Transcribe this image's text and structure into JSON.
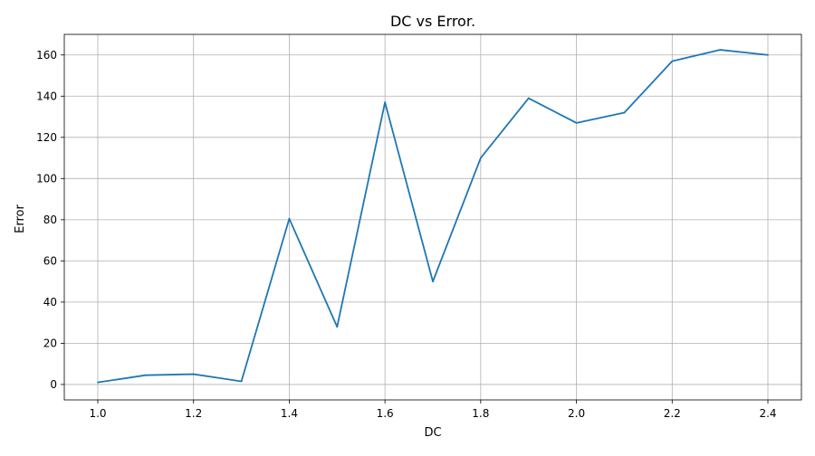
{
  "chart_data": {
    "type": "line",
    "title": "DC vs Error.",
    "xlabel": "DC",
    "ylabel": "Error",
    "x": [
      1.0,
      1.1,
      1.2,
      1.3,
      1.4,
      1.5,
      1.6,
      1.7,
      1.8,
      1.9,
      2.0,
      2.1,
      2.2,
      2.3,
      2.4
    ],
    "series": [
      {
        "values": [
          1,
          4.5,
          5,
          1.5,
          80.5,
          28,
          137,
          50,
          110,
          139,
          127,
          132,
          157,
          162.5,
          160
        ]
      }
    ],
    "xticks": [
      "1.0",
      "1.2",
      "1.4",
      "1.6",
      "1.8",
      "2.0",
      "2.2",
      "2.4"
    ],
    "yticks": [
      "0",
      "20",
      "40",
      "60",
      "80",
      "100",
      "120",
      "140",
      "160"
    ],
    "xlim": [
      0.93,
      2.47
    ],
    "ylim": [
      -7.5,
      170
    ],
    "grid": true,
    "line_color": "#1f77b4",
    "grid_color": "#b0b0b0"
  }
}
